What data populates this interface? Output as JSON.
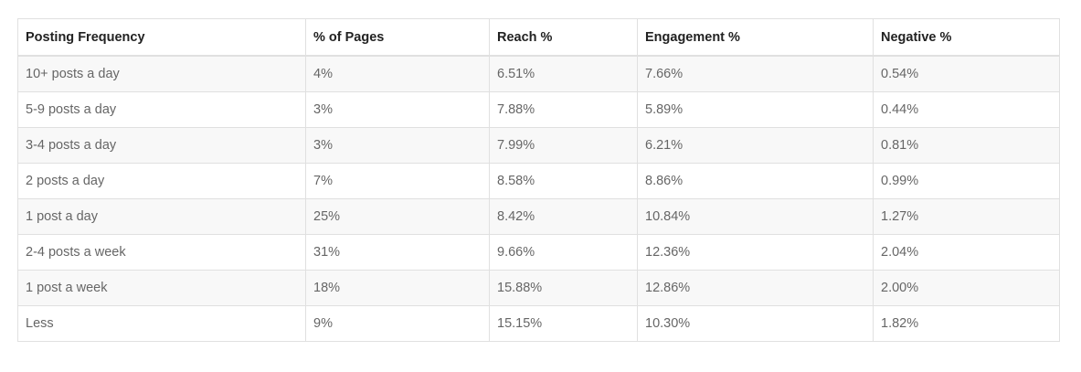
{
  "table": {
    "headers": [
      "Posting Frequency",
      "% of Pages",
      "Reach %",
      "Engagement %",
      "Negative %"
    ],
    "rows": [
      [
        "10+ posts a day",
        "4%",
        "6.51%",
        "7.66%",
        "0.54%"
      ],
      [
        "5-9 posts a day",
        "3%",
        "7.88%",
        "5.89%",
        "0.44%"
      ],
      [
        "3-4 posts a day",
        "3%",
        "7.99%",
        "6.21%",
        "0.81%"
      ],
      [
        "2 posts a day",
        "7%",
        "8.58%",
        "8.86%",
        "0.99%"
      ],
      [
        "1 post a day",
        "25%",
        "8.42%",
        "10.84%",
        "1.27%"
      ],
      [
        "2-4 posts a week",
        "31%",
        "9.66%",
        "12.36%",
        "2.04%"
      ],
      [
        "1 post a week",
        "18%",
        "15.88%",
        "12.86%",
        "2.00%"
      ],
      [
        "Less",
        "9%",
        "15.15%",
        "10.30%",
        "1.82%"
      ]
    ]
  }
}
